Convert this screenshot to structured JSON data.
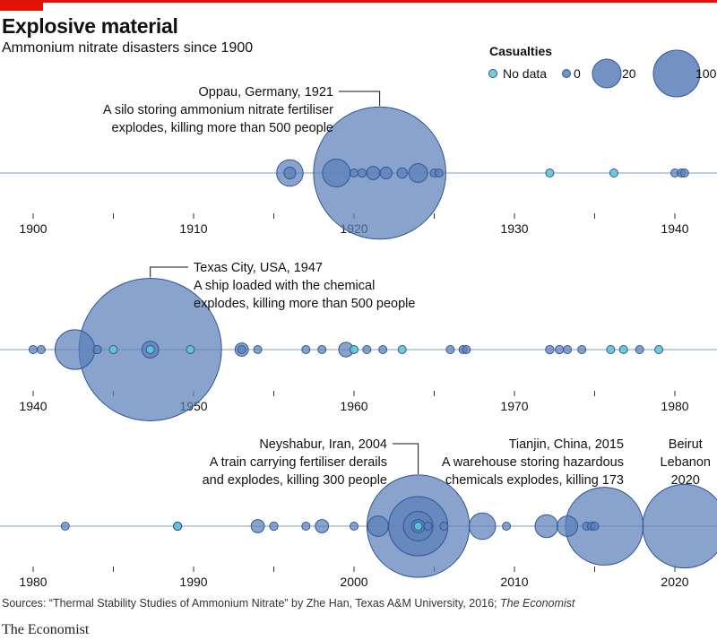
{
  "header": {
    "title": "Explosive material",
    "subtitle": "Ammonium nitrate disasters since 1900"
  },
  "colors": {
    "bubble": "#5b7fb8",
    "bubble_edge": "#2f5597",
    "no_data": "#5fc6d6",
    "axis": "#9db0c8",
    "brand_red": "#e3120b"
  },
  "legend": {
    "title": "Casualties",
    "items": [
      {
        "label": "No data",
        "kind": "nodata",
        "value": null
      },
      {
        "label": "0",
        "kind": "value",
        "value": 0
      },
      {
        "label": "20",
        "kind": "value",
        "value": 20
      },
      {
        "label": "100",
        "kind": "value",
        "value": 100
      }
    ]
  },
  "chart_data": {
    "type": "scatter",
    "encoding": "bubble size = casualties (area-proportional); cyan = no data",
    "panels": [
      {
        "xlim": [
          1900,
          1940
        ],
        "ticks": [
          1900,
          1910,
          1920,
          1930,
          1940
        ],
        "events": [
          {
            "year": 1916.0,
            "casualties": 20
          },
          {
            "year": 1916.0,
            "casualties": 4
          },
          {
            "year": 1918.9,
            "casualties": 22
          },
          {
            "year": 1920.0,
            "casualties": 0
          },
          {
            "year": 1920.5,
            "casualties": 2
          },
          {
            "year": 1921.2,
            "casualties": 5
          },
          {
            "year": 1921.6,
            "casualties": 500
          },
          {
            "year": 1922.0,
            "casualties": 4
          },
          {
            "year": 1923.0,
            "casualties": 3
          },
          {
            "year": 1924.0,
            "casualties": 10
          },
          {
            "year": 1925.0,
            "casualties": 1
          },
          {
            "year": 1925.3,
            "casualties": 0
          },
          {
            "year": 1932.2,
            "casualties": null
          },
          {
            "year": 1936.2,
            "casualties": null
          },
          {
            "year": 1940.0,
            "casualties": 0
          },
          {
            "year": 1940.4,
            "casualties": 0
          },
          {
            "year": 1940.6,
            "casualties": 0
          }
        ],
        "annotation": {
          "year": 1921.6,
          "title": "Oppau, Germany, 1921",
          "lines": [
            "A silo storing ammonium nitrate fertiliser",
            "explodes, killing more than 500 people"
          ]
        }
      },
      {
        "xlim": [
          1940,
          1980
        ],
        "ticks": [
          1940,
          1950,
          1960,
          1970,
          1980
        ],
        "events": [
          {
            "year": 1940.0,
            "casualties": 0
          },
          {
            "year": 1940.5,
            "casualties": 0
          },
          {
            "year": 1942.6,
            "casualties": 45
          },
          {
            "year": 1944.0,
            "casualties": 2
          },
          {
            "year": 1945.0,
            "casualties": null
          },
          {
            "year": 1947.3,
            "casualties": 580
          },
          {
            "year": 1947.3,
            "casualties": 8
          },
          {
            "year": 1947.3,
            "casualties": null
          },
          {
            "year": 1949.8,
            "casualties": null
          },
          {
            "year": 1953.0,
            "casualties": 5
          },
          {
            "year": 1953.0,
            "casualties": 0
          },
          {
            "year": 1954.0,
            "casualties": 0
          },
          {
            "year": 1957.0,
            "casualties": 0
          },
          {
            "year": 1958.0,
            "casualties": 0
          },
          {
            "year": 1959.5,
            "casualties": 6
          },
          {
            "year": 1960.0,
            "casualties": null
          },
          {
            "year": 1960.8,
            "casualties": 0
          },
          {
            "year": 1961.8,
            "casualties": 0
          },
          {
            "year": 1963.0,
            "casualties": null
          },
          {
            "year": 1966.0,
            "casualties": 0
          },
          {
            "year": 1966.8,
            "casualties": 0
          },
          {
            "year": 1967.0,
            "casualties": 0
          },
          {
            "year": 1972.2,
            "casualties": 2
          },
          {
            "year": 1972.8,
            "casualties": 2
          },
          {
            "year": 1973.3,
            "casualties": 0
          },
          {
            "year": 1974.2,
            "casualties": 0
          },
          {
            "year": 1976.0,
            "casualties": null
          },
          {
            "year": 1976.8,
            "casualties": null
          },
          {
            "year": 1977.8,
            "casualties": 0
          },
          {
            "year": 1979.0,
            "casualties": null
          }
        ],
        "annotation": {
          "year": 1947.3,
          "title": "Texas City, USA, 1947",
          "lines": [
            "A ship loaded with the chemical",
            "explodes, killing more than 500 people"
          ]
        }
      },
      {
        "xlim": [
          1980,
          2020
        ],
        "ticks": [
          1980,
          1990,
          2000,
          2010,
          2020
        ],
        "events": [
          {
            "year": 1982.0,
            "casualties": 0
          },
          {
            "year": 1989.0,
            "casualties": 2
          },
          {
            "year": 1989.0,
            "casualties": null
          },
          {
            "year": 1994.0,
            "casualties": 5
          },
          {
            "year": 1995.0,
            "casualties": 2
          },
          {
            "year": 1997.0,
            "casualties": 1
          },
          {
            "year": 1998.0,
            "casualties": 5
          },
          {
            "year": 2000.0,
            "casualties": 0
          },
          {
            "year": 2001.5,
            "casualties": 12
          },
          {
            "year": 2004.0,
            "casualties": 300
          },
          {
            "year": 2004.0,
            "casualties": 100
          },
          {
            "year": 2004.0,
            "casualties": 25
          },
          {
            "year": 2004.0,
            "casualties": 5
          },
          {
            "year": 2004.0,
            "casualties": null
          },
          {
            "year": 2004.6,
            "casualties": 0
          },
          {
            "year": 2005.6,
            "casualties": 0
          },
          {
            "year": 2008.0,
            "casualties": 20
          },
          {
            "year": 2009.5,
            "casualties": 0
          },
          {
            "year": 2012.0,
            "casualties": 15
          },
          {
            "year": 2013.3,
            "casualties": 12
          },
          {
            "year": 2014.5,
            "casualties": 0
          },
          {
            "year": 2014.8,
            "casualties": 0
          },
          {
            "year": 2015.0,
            "casualties": 0
          },
          {
            "year": 2015.6,
            "casualties": 173
          },
          {
            "year": 2020.6,
            "casualties": 200
          }
        ],
        "annotations": [
          {
            "year": 2004.0,
            "title": "Neyshabur, Iran, 2004",
            "lines": [
              "A train carrying fertiliser derails",
              "and explodes, killing 300 people"
            ]
          },
          {
            "year": 2015.6,
            "title": "Tianjin, China, 2015",
            "lines": [
              "A warehouse storing hazardous",
              "chemicals explodes, killing 173"
            ]
          },
          {
            "year": 2020.6,
            "title": "Beirut",
            "lines": [
              "Lebanon",
              "2020"
            ]
          }
        ]
      }
    ]
  },
  "footer": {
    "source": "Sources: “Thermal Stability Studies of Ammonium Nitrate” by Zhe Han, Texas A&M University, 2016; ",
    "source_italic": "The Economist",
    "brand": "The Economist"
  }
}
